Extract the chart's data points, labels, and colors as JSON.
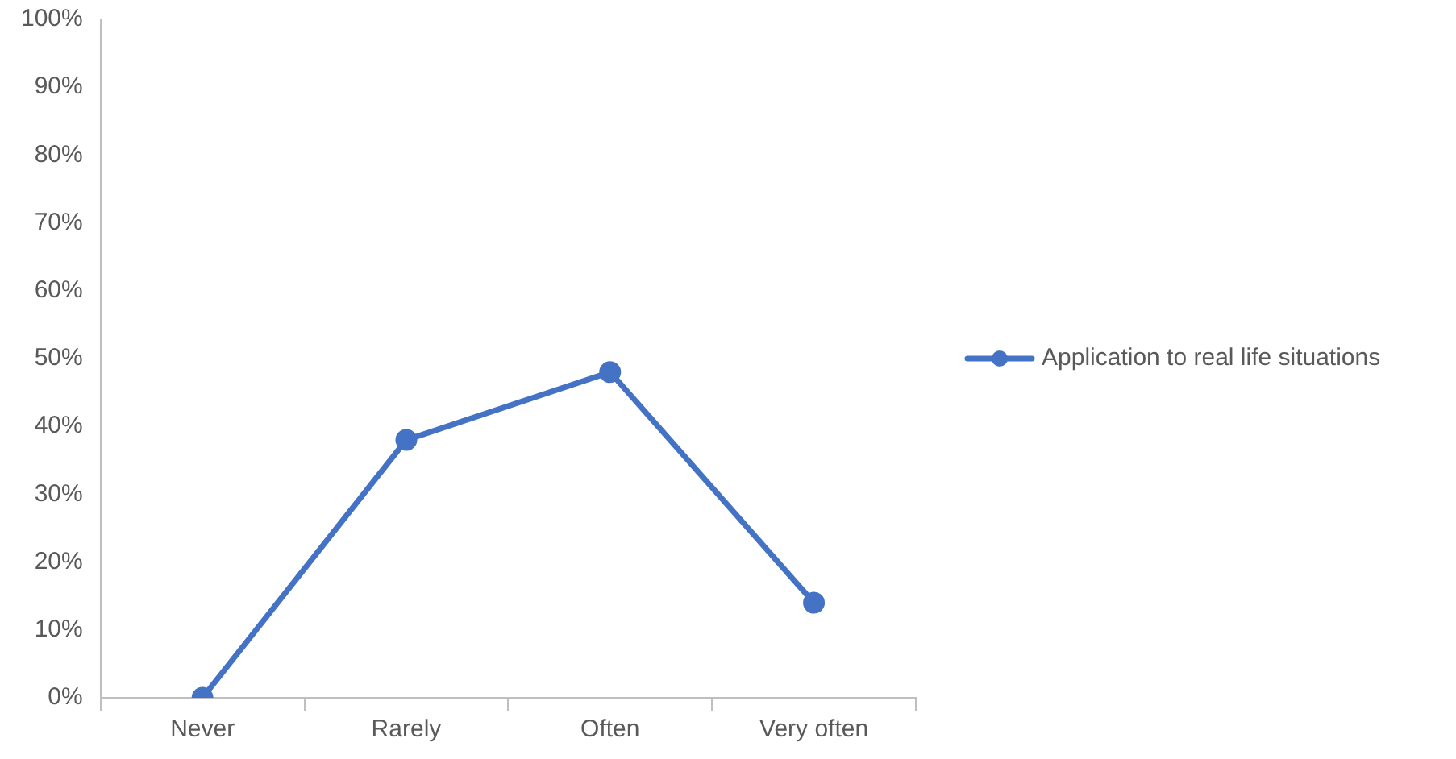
{
  "chart_data": {
    "type": "line",
    "categories": [
      "Never",
      "Rarely",
      "Often",
      "Very often"
    ],
    "series": [
      {
        "name": "Application to real life situations",
        "color": "#4472c4",
        "values": [
          0,
          38,
          48,
          14
        ]
      }
    ],
    "ylim": [
      0,
      100
    ],
    "yticks": [
      {
        "value": 0,
        "label": "0%"
      },
      {
        "value": 10,
        "label": "10%"
      },
      {
        "value": 20,
        "label": "20%"
      },
      {
        "value": 30,
        "label": "30%"
      },
      {
        "value": 40,
        "label": "40%"
      },
      {
        "value": 50,
        "label": "50%"
      },
      {
        "value": 60,
        "label": "60%"
      },
      {
        "value": 70,
        "label": "70%"
      },
      {
        "value": 80,
        "label": "80%"
      },
      {
        "value": 90,
        "label": "90%"
      },
      {
        "value": 100,
        "label": "100%"
      }
    ],
    "grid": false,
    "legend": "right",
    "marker": "circle",
    "line_style": "solid"
  }
}
